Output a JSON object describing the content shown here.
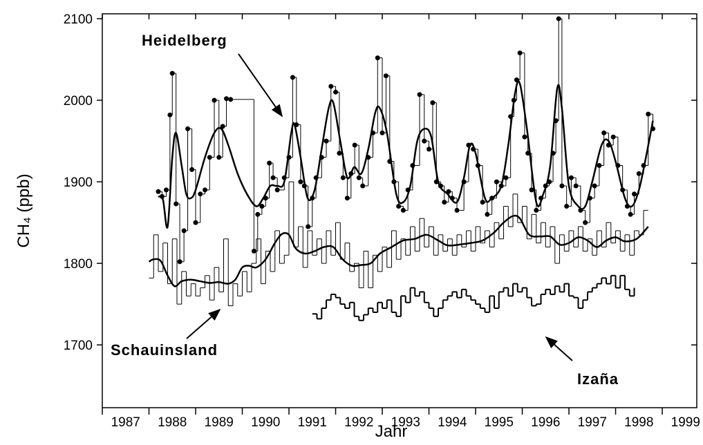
{
  "chart_data": {
    "type": "line",
    "ylabel": "CH₄ (ppb)",
    "xlabel": "Jahr",
    "xlim": [
      1987,
      1999.74
    ],
    "ylim": [
      1623,
      2106
    ],
    "xticks": [
      1987,
      1988,
      1989,
      1990,
      1991,
      1992,
      1993,
      1994,
      1995,
      1996,
      1997,
      1998,
      1999
    ],
    "yticks": [
      1700,
      1800,
      1900,
      2000,
      2100
    ],
    "grid": false,
    "annotations": [
      "Heidelberg",
      "Schauinsland",
      "Izaña"
    ],
    "series": [
      {
        "color": "#000000",
        "step": true,
        "markers": true,
        "width": 1,
        "x": [
          1988.2,
          1988.28,
          1988.37,
          1988.45,
          1988.5,
          1988.58,
          1988.66,
          1988.75,
          1988.83,
          1988.92,
          1989.0,
          1989.1,
          1989.2,
          1989.3,
          1989.4,
          1989.5,
          1989.58,
          1989.66,
          1989.75,
          1990.25,
          1990.33,
          1990.42,
          1990.5,
          1990.58,
          1990.66,
          1990.75,
          1990.9,
          1991.0,
          1991.08,
          1991.16,
          1991.25,
          1991.33,
          1991.41,
          1991.5,
          1991.58,
          1991.7,
          1991.8,
          1991.9,
          1992.0,
          1992.08,
          1992.16,
          1992.25,
          1992.33,
          1992.41,
          1992.5,
          1992.58,
          1992.7,
          1992.8,
          1992.9,
          1993.0,
          1993.08,
          1993.16,
          1993.25,
          1993.35,
          1993.45,
          1993.55,
          1993.65,
          1993.8,
          1993.9,
          1994.0,
          1994.08,
          1994.16,
          1994.25,
          1994.33,
          1994.42,
          1994.5,
          1994.6,
          1994.75,
          1994.85,
          1994.95,
          1995.05,
          1995.15,
          1995.25,
          1995.35,
          1995.45,
          1995.55,
          1995.65,
          1995.75,
          1995.82,
          1995.88,
          1995.95,
          1996.05,
          1996.12,
          1996.2,
          1996.3,
          1996.4,
          1996.5,
          1996.58,
          1996.66,
          1996.72,
          1996.78,
          1996.85,
          1996.95,
          1997.05,
          1997.15,
          1997.25,
          1997.35,
          1997.45,
          1997.55,
          1997.65,
          1997.75,
          1997.85,
          1997.95,
          1998.05,
          1998.15,
          1998.25,
          1998.32,
          1998.4,
          1998.5,
          1998.6,
          1998.7,
          1998.8
        ],
        "values": [
          1888,
          1882,
          1890,
          1982,
          2033,
          1873,
          1802,
          1840,
          1965,
          1915,
          1850,
          1885,
          1890,
          1930,
          2000,
          1930,
          1968,
          2002,
          2001,
          1815,
          1860,
          1870,
          1880,
          1923,
          1905,
          1890,
          1905,
          1930,
          2028,
          1970,
          1900,
          1895,
          1845,
          1880,
          1905,
          1930,
          1950,
          2017,
          2010,
          1935,
          1905,
          1880,
          1910,
          1945,
          1905,
          1895,
          1930,
          1960,
          2052,
          1960,
          2030,
          1925,
          1900,
          1870,
          1865,
          1890,
          1920,
          2007,
          1950,
          1940,
          1997,
          1900,
          1895,
          1875,
          1888,
          1880,
          1865,
          1900,
          1945,
          1940,
          1920,
          1875,
          1860,
          1880,
          1900,
          1895,
          1905,
          1980,
          2000,
          2025,
          2058,
          1955,
          1935,
          1890,
          1865,
          1880,
          1895,
          1900,
          1935,
          1975,
          2100,
          1895,
          1870,
          1905,
          1895,
          1865,
          1850,
          1880,
          1895,
          1920,
          1960,
          1945,
          1955,
          1920,
          1890,
          1870,
          1860,
          1885,
          1910,
          1920,
          1983,
          1965
        ]
      },
      {
        "color": "#000000",
        "step": false,
        "markers": false,
        "width": 2.5,
        "x": [
          1988.2,
          1988.3,
          1988.4,
          1988.5,
          1988.58,
          1988.7,
          1988.8,
          1988.9,
          1989.0,
          1989.2,
          1989.4,
          1989.55,
          1989.7,
          1989.9,
          1990.1,
          1990.3,
          1990.45,
          1990.6,
          1990.75,
          1990.9,
          1991.05,
          1991.12,
          1991.25,
          1991.4,
          1991.55,
          1991.7,
          1991.85,
          1991.95,
          1992.1,
          1992.25,
          1992.4,
          1992.55,
          1992.7,
          1992.85,
          1992.95,
          1993.1,
          1993.3,
          1993.45,
          1993.6,
          1993.75,
          1993.9,
          1994.05,
          1994.2,
          1994.4,
          1994.6,
          1994.75,
          1994.88,
          1995.0,
          1995.2,
          1995.35,
          1995.55,
          1995.7,
          1995.85,
          1995.95,
          1996.1,
          1996.3,
          1996.45,
          1996.6,
          1996.75,
          1996.85,
          1997.0,
          1997.2,
          1997.35,
          1997.5,
          1997.7,
          1997.85,
          1998.0,
          1998.2,
          1998.35,
          1998.5,
          1998.65,
          1998.8
        ],
        "values": [
          1882,
          1878,
          1845,
          1930,
          1960,
          1920,
          1885,
          1880,
          1890,
          1930,
          1960,
          1965,
          1945,
          1910,
          1885,
          1870,
          1880,
          1895,
          1895,
          1900,
          1960,
          1970,
          1930,
          1880,
          1890,
          1940,
          1990,
          1997,
          1950,
          1905,
          1918,
          1910,
          1940,
          1985,
          1990,
          1960,
          1885,
          1875,
          1895,
          1950,
          1965,
          1955,
          1900,
          1885,
          1875,
          1905,
          1945,
          1935,
          1880,
          1880,
          1895,
          1945,
          2010,
          2020,
          1965,
          1875,
          1885,
          1920,
          2015,
          1990,
          1895,
          1870,
          1870,
          1900,
          1945,
          1950,
          1925,
          1880,
          1870,
          1890,
          1930,
          1975
        ]
      },
      {
        "color": "#000000",
        "step": true,
        "markers": false,
        "width": 1,
        "x": [
          1988.0,
          1988.1,
          1988.2,
          1988.3,
          1988.4,
          1988.5,
          1988.6,
          1988.7,
          1988.8,
          1988.9,
          1989.0,
          1989.1,
          1989.2,
          1989.3,
          1989.4,
          1989.5,
          1989.6,
          1989.7,
          1989.8,
          1989.9,
          1990.0,
          1990.1,
          1990.2,
          1990.3,
          1990.4,
          1990.5,
          1990.6,
          1990.7,
          1990.8,
          1990.9,
          1991.0,
          1991.1,
          1991.2,
          1991.3,
          1991.4,
          1991.5,
          1991.6,
          1991.7,
          1991.8,
          1991.9,
          1992.0,
          1992.1,
          1992.2,
          1992.3,
          1992.4,
          1992.5,
          1992.6,
          1992.7,
          1992.8,
          1992.9,
          1993.0,
          1993.1,
          1993.2,
          1993.3,
          1993.4,
          1993.5,
          1993.6,
          1993.7,
          1993.8,
          1993.9,
          1994.0,
          1994.1,
          1994.2,
          1994.3,
          1994.4,
          1994.5,
          1994.6,
          1994.7,
          1994.8,
          1994.9,
          1995.0,
          1995.1,
          1995.2,
          1995.3,
          1995.4,
          1995.5,
          1995.6,
          1995.7,
          1995.8,
          1995.9,
          1996.0,
          1996.1,
          1996.2,
          1996.3,
          1996.4,
          1996.5,
          1996.6,
          1996.7,
          1996.8,
          1996.9,
          1997.0,
          1997.1,
          1997.2,
          1997.3,
          1997.4,
          1997.5,
          1997.6,
          1997.7,
          1997.8,
          1997.9,
          1998.0,
          1998.1,
          1998.2,
          1998.3,
          1998.4,
          1998.5,
          1998.6,
          1998.7
        ],
        "values": [
          1782,
          1835,
          1790,
          1825,
          1775,
          1830,
          1750,
          1790,
          1760,
          1775,
          1760,
          1770,
          1785,
          1755,
          1795,
          1765,
          1830,
          1748,
          1775,
          1760,
          1790,
          1765,
          1800,
          1830,
          1775,
          1815,
          1790,
          1840,
          1800,
          1810,
          1900,
          1820,
          1845,
          1795,
          1840,
          1810,
          1830,
          1800,
          1840,
          1810,
          1850,
          1805,
          1825,
          1790,
          1800,
          1770,
          1815,
          1770,
          1810,
          1790,
          1820,
          1795,
          1840,
          1805,
          1830,
          1810,
          1845,
          1815,
          1855,
          1820,
          1845,
          1810,
          1835,
          1815,
          1830,
          1810,
          1835,
          1820,
          1840,
          1815,
          1845,
          1825,
          1840,
          1820,
          1850,
          1830,
          1870,
          1845,
          1885,
          1850,
          1870,
          1830,
          1860,
          1825,
          1850,
          1820,
          1845,
          1800,
          1835,
          1815,
          1840,
          1820,
          1845,
          1815,
          1830,
          1810,
          1840,
          1820,
          1850,
          1825,
          1840,
          1815,
          1835,
          1810,
          1840,
          1835,
          1865,
          1865
        ]
      },
      {
        "color": "#000000",
        "step": false,
        "markers": false,
        "width": 2.5,
        "x": [
          1988.0,
          1988.1,
          1988.25,
          1988.4,
          1988.55,
          1988.7,
          1988.9,
          1989.1,
          1989.3,
          1989.5,
          1989.7,
          1989.85,
          1990.0,
          1990.15,
          1990.3,
          1990.5,
          1990.7,
          1990.85,
          1991.0,
          1991.15,
          1991.35,
          1991.55,
          1991.75,
          1991.95,
          1992.15,
          1992.35,
          1992.55,
          1992.75,
          1992.95,
          1993.2,
          1993.45,
          1993.7,
          1993.95,
          1994.2,
          1994.4,
          1994.65,
          1994.9,
          1995.15,
          1995.4,
          1995.6,
          1995.8,
          1995.95,
          1996.15,
          1996.4,
          1996.6,
          1996.8,
          1997.0,
          1997.2,
          1997.4,
          1997.6,
          1997.8,
          1998.0,
          1998.2,
          1998.45,
          1998.7
        ],
        "values": [
          1802,
          1805,
          1803,
          1785,
          1772,
          1778,
          1780,
          1778,
          1776,
          1777,
          1775,
          1780,
          1795,
          1797,
          1795,
          1805,
          1825,
          1836,
          1835,
          1818,
          1812,
          1815,
          1820,
          1820,
          1805,
          1797,
          1798,
          1800,
          1812,
          1820,
          1828,
          1830,
          1835,
          1828,
          1822,
          1823,
          1825,
          1828,
          1838,
          1850,
          1858,
          1855,
          1835,
          1833,
          1833,
          1823,
          1825,
          1832,
          1828,
          1820,
          1828,
          1832,
          1827,
          1830,
          1845
        ]
      },
      {
        "color": "#000000",
        "step": true,
        "markers": false,
        "width": 2,
        "x": [
          1991.5,
          1991.6,
          1991.7,
          1991.8,
          1991.9,
          1992.0,
          1992.1,
          1992.2,
          1992.3,
          1992.4,
          1992.5,
          1992.6,
          1992.7,
          1992.8,
          1992.9,
          1993.0,
          1993.1,
          1993.2,
          1993.3,
          1993.4,
          1993.5,
          1993.6,
          1993.7,
          1993.8,
          1993.9,
          1994.0,
          1994.1,
          1994.2,
          1994.3,
          1994.4,
          1994.5,
          1994.6,
          1994.7,
          1994.8,
          1994.9,
          1995.0,
          1995.1,
          1995.2,
          1995.3,
          1995.4,
          1995.5,
          1995.6,
          1995.7,
          1995.8,
          1995.9,
          1996.0,
          1996.1,
          1996.2,
          1996.3,
          1996.4,
          1996.5,
          1996.6,
          1996.7,
          1996.8,
          1996.9,
          1997.0,
          1997.1,
          1997.2,
          1997.3,
          1997.4,
          1997.5,
          1997.6,
          1997.7,
          1997.8,
          1997.9,
          1998.0,
          1998.1,
          1998.2,
          1998.3,
          1998.4
        ],
        "values": [
          1738,
          1732,
          1745,
          1755,
          1762,
          1758,
          1750,
          1745,
          1752,
          1735,
          1730,
          1737,
          1745,
          1740,
          1752,
          1745,
          1755,
          1740,
          1735,
          1760,
          1752,
          1770,
          1760,
          1765,
          1752,
          1745,
          1735,
          1745,
          1755,
          1760,
          1765,
          1758,
          1768,
          1760,
          1755,
          1750,
          1745,
          1740,
          1760,
          1745,
          1765,
          1770,
          1760,
          1775,
          1765,
          1770,
          1758,
          1748,
          1750,
          1762,
          1768,
          1762,
          1772,
          1765,
          1775,
          1760,
          1758,
          1745,
          1755,
          1765,
          1770,
          1775,
          1782,
          1775,
          1785,
          1770,
          1785,
          1768,
          1760,
          1770
        ]
      }
    ]
  }
}
